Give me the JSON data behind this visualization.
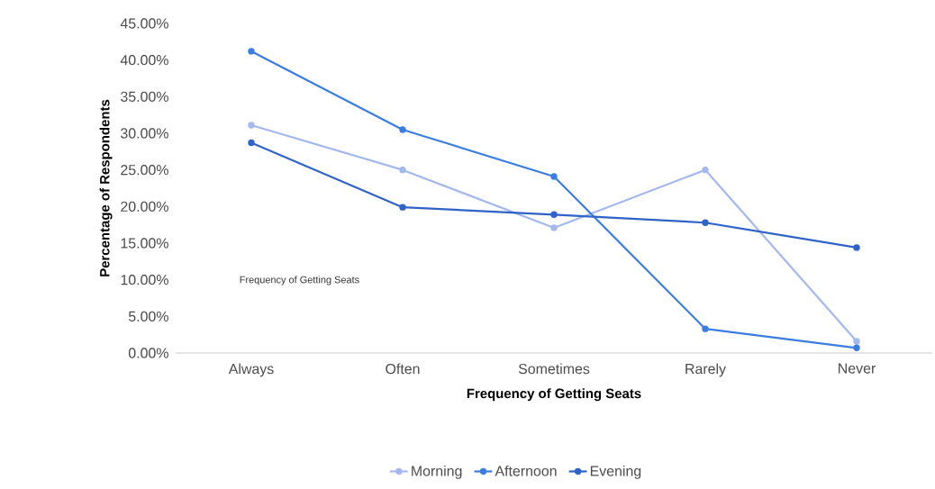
{
  "chart_data": {
    "type": "line",
    "xlabel": "Frequency of Getting Seats",
    "ylabel": "Percentage of Respondents",
    "categories": [
      "Always",
      "Often",
      "Sometimes",
      "Rarely",
      "Never"
    ],
    "series": [
      {
        "name": "Morning",
        "color": "#a4b8ee",
        "values": [
          31.1,
          25.0,
          17.1,
          25.0,
          1.6
        ]
      },
      {
        "name": "Afternoon",
        "color": "#3b7de0",
        "values": [
          41.2,
          30.5,
          24.1,
          3.3,
          0.7
        ]
      },
      {
        "name": "Evening",
        "color": "#2f63c8",
        "values": [
          28.7,
          19.9,
          18.9,
          17.8,
          14.4
        ]
      }
    ],
    "ylim": [
      0,
      45
    ],
    "yticks": [
      {
        "value": 0,
        "label": "0.00%"
      },
      {
        "value": 5,
        "label": "5.00%"
      },
      {
        "value": 10,
        "label": "10.00%"
      },
      {
        "value": 15,
        "label": "15.00%"
      },
      {
        "value": 20,
        "label": "20.00%"
      },
      {
        "value": 25,
        "label": "25.00%"
      },
      {
        "value": 30,
        "label": "30.00%"
      },
      {
        "value": 35,
        "label": "35.00%"
      },
      {
        "value": 40,
        "label": "40.00%"
      },
      {
        "value": 45,
        "label": "45.00%"
      }
    ],
    "annotations": [
      "Frequency of Getting Seats"
    ],
    "legend": "bottom",
    "marker": "circle",
    "line_style": "solid",
    "grid": false
  }
}
